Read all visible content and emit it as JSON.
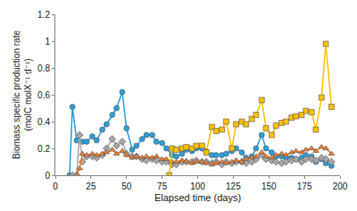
{
  "chart_data": {
    "type": "line",
    "xlabel": "Elapsed time (days)",
    "ylabel": "Biomass specific production rate (molC molX⁻¹ d⁻¹)",
    "xlim": [
      0,
      200
    ],
    "xticks": [
      0,
      25,
      50,
      75,
      100,
      125,
      150,
      175,
      200
    ],
    "ylim": [
      0,
      1.2
    ],
    "yticks": [
      0,
      0.2,
      0.4,
      0.6,
      0.8,
      1,
      1.2
    ],
    "grid": false,
    "series": [
      {
        "color": "#2a9fd8",
        "marker": "circle",
        "line_style": "solid",
        "x": [
          10,
          12,
          15,
          19,
          22,
          26,
          29,
          33,
          36,
          40,
          43,
          47,
          50,
          54,
          57,
          61,
          64,
          68,
          71,
          75,
          78,
          82,
          85,
          89,
          92,
          96,
          99,
          103,
          106,
          110,
          113,
          117,
          120,
          124,
          127,
          131,
          134,
          138,
          141,
          145,
          148,
          152,
          155,
          159,
          162,
          166,
          169,
          173,
          176,
          180,
          183,
          187,
          190,
          194
        ],
        "values": [
          0,
          0.51,
          0.26,
          0.25,
          0.25,
          0.29,
          0.26,
          0.34,
          0.38,
          0.45,
          0.5,
          0.62,
          0.35,
          0.19,
          0.22,
          0.27,
          0.3,
          0.3,
          0.25,
          0.24,
          0.2,
          0.15,
          0.14,
          0.16,
          0.19,
          0.18,
          0.2,
          0.2,
          0.18,
          0.15,
          0.15,
          0.15,
          0.16,
          0.18,
          0.2,
          0.17,
          0.13,
          0.14,
          0.2,
          0.3,
          0.2,
          0.17,
          0.14,
          0.14,
          0.13,
          0.13,
          0.12,
          0.13,
          0.15,
          0.14,
          0.1,
          0.12,
          0.09,
          0.07
        ]
      },
      {
        "color": "#a6a6a6",
        "marker": "diamond",
        "line_style": "solid",
        "x": [
          12,
          15,
          17,
          19,
          22,
          26,
          29,
          33,
          36,
          40,
          43,
          47,
          50,
          54,
          57,
          61,
          64,
          68,
          71,
          75,
          78,
          82,
          85,
          89,
          92,
          96,
          99,
          103,
          106,
          110,
          113,
          117,
          120,
          124,
          127,
          131,
          134,
          138,
          141,
          145,
          148,
          152,
          155,
          159,
          162,
          166,
          169,
          173,
          176,
          180,
          183,
          187,
          190,
          194
        ],
        "values": [
          0,
          0,
          0.3,
          0.1,
          0.14,
          0.14,
          0.13,
          0.15,
          0.2,
          0.27,
          0.22,
          0.25,
          0.16,
          0.14,
          0.14,
          0.12,
          0.11,
          0.12,
          0.11,
          0.1,
          0.1,
          0.08,
          0.08,
          0.1,
          0.1,
          0.1,
          0.11,
          0.1,
          0.1,
          0.09,
          0.1,
          0.08,
          0.1,
          0.09,
          0.1,
          0.1,
          0.09,
          0.1,
          0.12,
          0.15,
          0.12,
          0.11,
          0.1,
          0.09,
          0.1,
          0.11,
          0.12,
          0.1,
          0.12,
          0.12,
          0.11,
          0.13,
          0.12,
          0.1
        ]
      },
      {
        "color": "#ed7d31",
        "marker": "triangle-up",
        "line_style": "solid",
        "x": [
          15,
          17,
          19,
          22,
          26,
          29,
          33,
          36,
          40,
          43,
          47,
          50,
          54,
          57,
          61,
          64,
          68,
          71,
          75,
          78,
          82,
          85,
          89,
          92,
          96,
          99,
          103,
          106,
          110,
          113,
          117,
          120,
          124,
          127,
          131,
          134,
          138,
          141,
          145,
          148,
          152,
          155,
          159,
          162,
          166,
          169,
          173,
          176,
          180,
          183,
          187,
          190,
          194
        ],
        "values": [
          0,
          0.05,
          0.16,
          0.15,
          0.16,
          0.15,
          0.16,
          0.17,
          0.19,
          0.16,
          0.18,
          0.15,
          0.13,
          0.14,
          0.13,
          0.14,
          0.13,
          0.14,
          0.12,
          0.12,
          0.1,
          0.1,
          0.11,
          0.1,
          0.09,
          0.1,
          0.1,
          0.09,
          0.08,
          0.09,
          0.1,
          0.09,
          0.1,
          0.11,
          0.1,
          0.12,
          0.13,
          0.14,
          0.17,
          0.14,
          0.13,
          0.15,
          0.16,
          0.15,
          0.17,
          0.18,
          0.17,
          0.19,
          0.2,
          0.18,
          0.21,
          0.2,
          0.16
        ]
      },
      {
        "color": "#ffc000",
        "marker": "square",
        "line_style": "solid",
        "x": [
          80,
          82,
          85,
          89,
          92,
          96,
          99,
          103,
          106,
          110,
          113,
          117,
          120,
          124,
          127,
          131,
          134,
          138,
          141,
          145,
          148,
          152,
          155,
          159,
          162,
          166,
          169,
          173,
          176,
          180,
          183,
          187,
          190,
          194
        ],
        "values": [
          0,
          0.2,
          0.19,
          0.2,
          0.21,
          0.2,
          0.22,
          0.22,
          0.17,
          0.36,
          0.33,
          0.34,
          0.4,
          0.2,
          0.38,
          0.4,
          0.38,
          0.42,
          0.45,
          0.56,
          0.35,
          0.3,
          0.37,
          0.39,
          0.4,
          0.43,
          0.44,
          0.45,
          0.48,
          0.47,
          0.34,
          0.58,
          0.98,
          0.51
        ]
      }
    ]
  }
}
